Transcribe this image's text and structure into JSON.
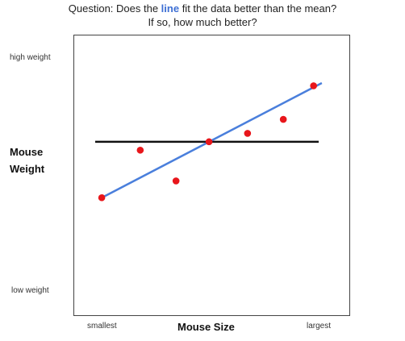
{
  "question": {
    "prefix": "Question:  Does the ",
    "highlight": "line",
    "suffix": " fit the data better than the mean?",
    "line2": "If so, how much better?"
  },
  "chart_data": {
    "type": "scatter",
    "title": "",
    "xlabel": "Mouse Size",
    "ylabel": "Mouse Weight",
    "x_tick_labels": [
      "smallest",
      "largest"
    ],
    "y_tick_labels": [
      "low weight",
      "high weight"
    ],
    "xlim": [
      0,
      1
    ],
    "ylim": [
      0,
      1
    ],
    "grid": false,
    "points": [
      {
        "x": 0.1,
        "y": 0.42
      },
      {
        "x": 0.24,
        "y": 0.59
      },
      {
        "x": 0.37,
        "y": 0.48
      },
      {
        "x": 0.49,
        "y": 0.62
      },
      {
        "x": 0.63,
        "y": 0.65
      },
      {
        "x": 0.76,
        "y": 0.7
      },
      {
        "x": 0.87,
        "y": 0.82
      }
    ],
    "fit_line": {
      "x1": 0.1,
      "y1": 0.42,
      "x2": 0.9,
      "y2": 0.83
    },
    "mean_line": {
      "y": 0.62
    },
    "point_color": "#e8161b",
    "fit_line_color": "#4a7fdc",
    "mean_line_color": "#111111"
  }
}
